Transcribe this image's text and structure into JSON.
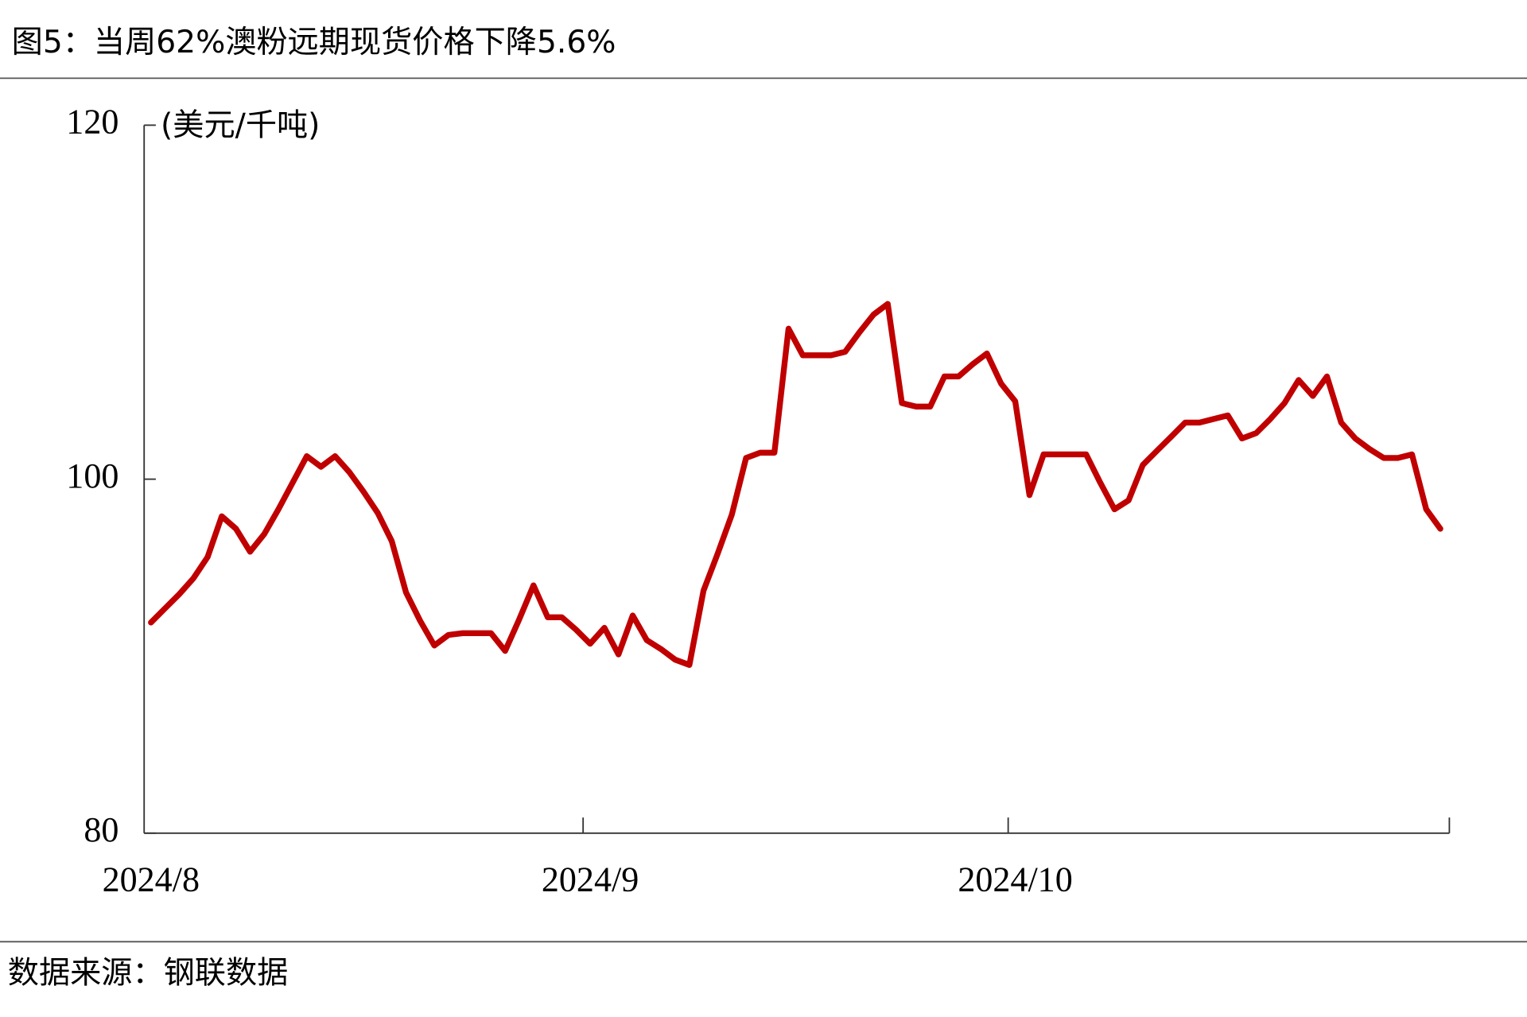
{
  "chart_data": {
    "type": "line",
    "title": "图5：当周62%澳粉远期现货价格下降5.6%",
    "y_label": "(美元/千吨)",
    "source": "数据来源：钢联数据",
    "categories": [
      "2024/8",
      null,
      null,
      null,
      null,
      null,
      null,
      null,
      null,
      null,
      null,
      null,
      null,
      null,
      null,
      null,
      null,
      null,
      null,
      null,
      null,
      null,
      null,
      null,
      null,
      null,
      null,
      null,
      null,
      null,
      null,
      "2024/9",
      null,
      null,
      null,
      null,
      null,
      null,
      null,
      null,
      null,
      null,
      null,
      null,
      null,
      null,
      null,
      null,
      null,
      null,
      null,
      null,
      null,
      null,
      null,
      null,
      null,
      null,
      null,
      null,
      null,
      "2024/10",
      null,
      null,
      null,
      null,
      null,
      null,
      null,
      null,
      null,
      null,
      null,
      null,
      null,
      null,
      null,
      null,
      null,
      null,
      null,
      null,
      null,
      null,
      null,
      null,
      null,
      null,
      null,
      null,
      null,
      null
    ],
    "series": [
      {
        "name": "62%澳粉远期现货价格",
        "color": "#c00000",
        "values": [
          91.9,
          92.7,
          93.5,
          94.4,
          95.6,
          97.9,
          97.2,
          95.9,
          96.9,
          98.3,
          99.8,
          101.3,
          100.7,
          101.3,
          100.4,
          99.3,
          98.1,
          96.5,
          93.6,
          92.0,
          90.6,
          91.2,
          91.3,
          91.3,
          91.3,
          90.3,
          92.1,
          94.0,
          92.2,
          92.2,
          91.5,
          90.7,
          91.6,
          90.1,
          92.3,
          90.9,
          90.4,
          89.8,
          89.5,
          93.7,
          95.8,
          98.0,
          101.2,
          101.5,
          101.5,
          108.5,
          107.0,
          107.0,
          107.0,
          107.2,
          108.3,
          109.3,
          109.9,
          104.3,
          104.1,
          104.1,
          105.8,
          105.8,
          106.5,
          107.1,
          105.4,
          104.4,
          99.1,
          101.4,
          101.4,
          101.4,
          101.4,
          99.8,
          98.3,
          98.8,
          100.8,
          101.6,
          102.4,
          103.2,
          103.2,
          103.4,
          103.6,
          102.3,
          102.6,
          103.4,
          104.3,
          105.6,
          104.7,
          105.8,
          103.2,
          102.3,
          101.7,
          101.2,
          101.2,
          101.4,
          98.3,
          97.2
        ]
      }
    ],
    "ylim": [
      80,
      120
    ],
    "yticks": [
      80,
      100,
      120
    ]
  }
}
